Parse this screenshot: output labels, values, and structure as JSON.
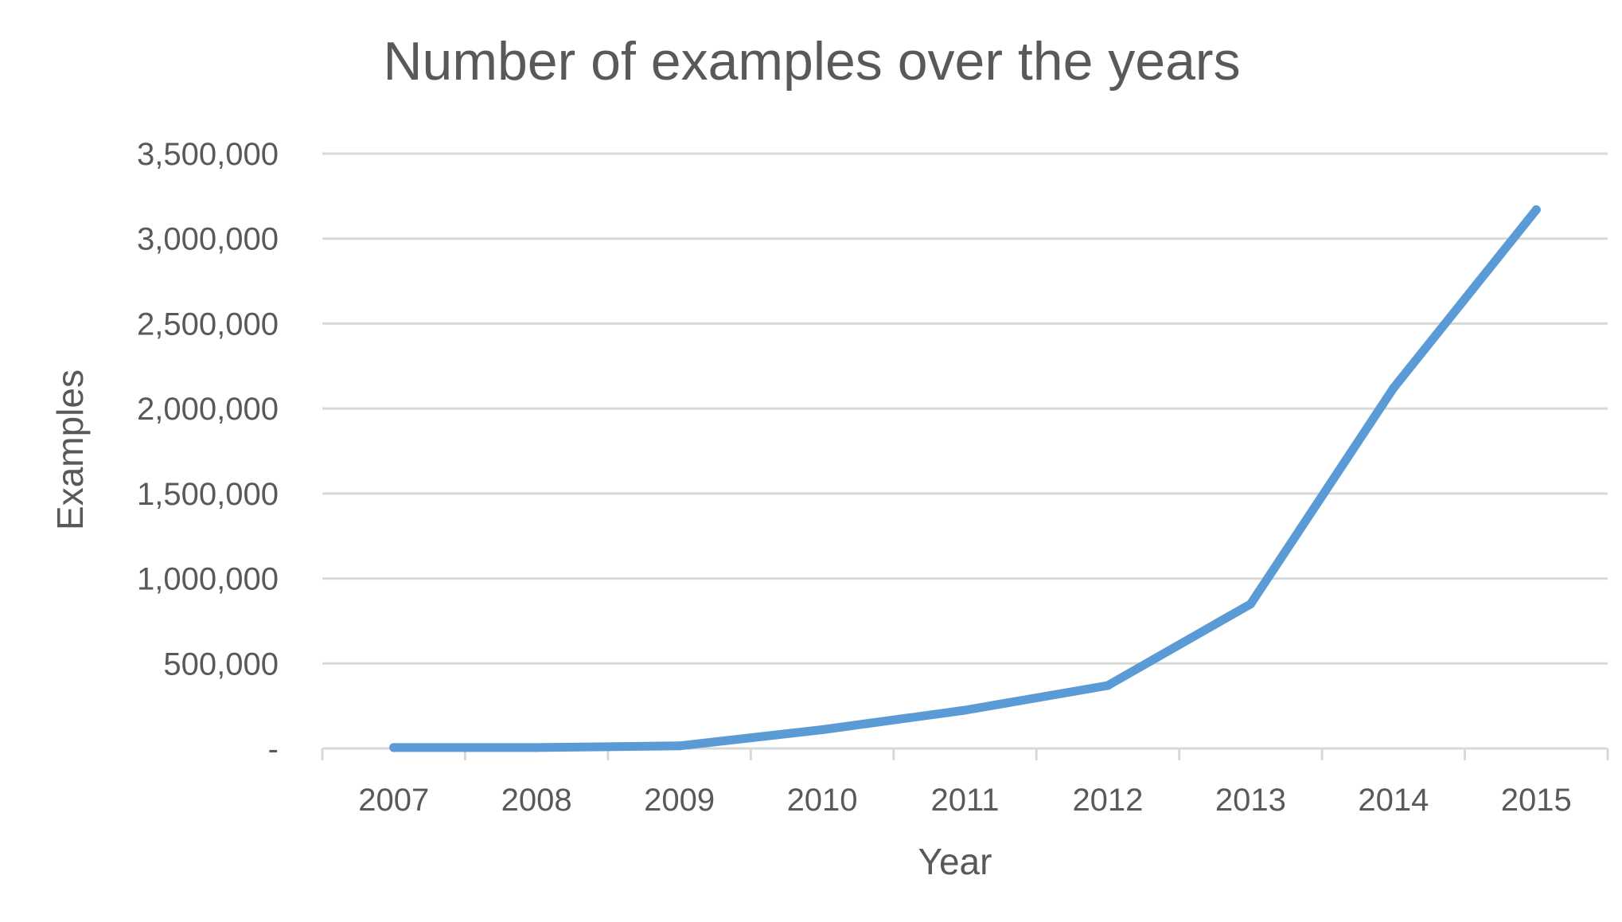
{
  "chart_data": {
    "type": "line",
    "title": "Number of examples over the years",
    "xlabel": "Year",
    "ylabel": "Examples",
    "categories": [
      "2007",
      "2008",
      "2009",
      "2010",
      "2011",
      "2012",
      "2013",
      "2014",
      "2015"
    ],
    "series": [
      {
        "values": [
          5000,
          5000,
          15000,
          110000,
          225000,
          370000,
          850000,
          2120000,
          3170000
        ]
      }
    ],
    "ylim": [
      0,
      3500000
    ],
    "yticks": [
      0,
      500000,
      1000000,
      1500000,
      2000000,
      2500000,
      3000000,
      3500000
    ],
    "ytick_labels": [
      "-",
      "500,000",
      "1,000,000",
      "1,500,000",
      "2,000,000",
      "2,500,000",
      "3,000,000",
      "3,500,000"
    ],
    "grid": true,
    "legend": "none",
    "colors": {
      "series": "#5b9bd5",
      "grid": "#d9d9d9",
      "text": "#595959"
    }
  }
}
